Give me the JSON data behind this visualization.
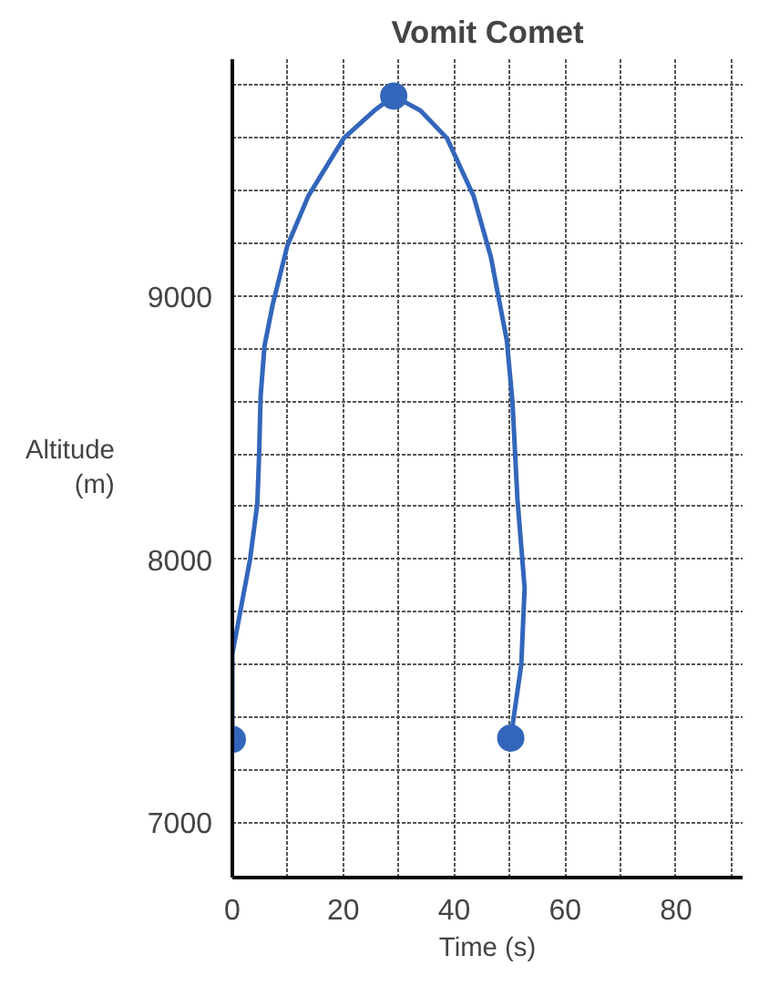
{
  "chart_data": {
    "type": "line",
    "title": "Vomit Comet",
    "xlabel": "Time (s)",
    "ylabel": "Altitude (m)",
    "xlim": [
      0,
      92
    ],
    "ylim": [
      6790,
      9900
    ],
    "xticks": [
      0,
      {
        "value": 10,
        "label": null
      },
      20,
      {
        "value": 30,
        "label": null
      },
      40,
      {
        "value": 50,
        "label": null
      },
      60,
      {
        "value": 70,
        "label": null
      },
      80,
      {
        "value": 90,
        "label": null
      }
    ],
    "yticks": [
      7000,
      {
        "value": 7200,
        "label": null
      },
      {
        "value": 7400,
        "label": null
      },
      {
        "value": 7600,
        "label": null
      },
      {
        "value": 7800,
        "label": null
      },
      8000,
      {
        "value": 8200,
        "label": null
      },
      {
        "value": 8400,
        "label": null
      },
      {
        "value": 8600,
        "label": null
      },
      {
        "value": 8800,
        "label": null
      },
      9000,
      {
        "value": 9200,
        "label": null
      },
      {
        "value": 9400,
        "label": null
      },
      {
        "value": 9600,
        "label": null
      },
      {
        "value": 9800,
        "label": null
      }
    ],
    "grid": true,
    "line_style": "solid",
    "series": [
      {
        "color": "#3366bb",
        "marker": "none",
        "x": [
          0,
          0,
          1.6,
          3.2,
          4.5,
          4.8,
          5.1,
          5.8,
          7.3,
          9.9,
          13.7,
          20.1,
          25.6,
          29.1,
          33.9,
          38.7,
          43.5,
          46.6,
          49.5,
          50.5,
          51.4,
          52.7,
          52.1,
          50.2
        ],
        "values": [
          7315,
          7640,
          7820,
          8000,
          8210,
          8380,
          8620,
          8810,
          8970,
          9190,
          9380,
          9600,
          9705,
          9760,
          9705,
          9600,
          9380,
          9150,
          8830,
          8600,
          8230,
          7890,
          7600,
          7320
        ]
      },
      {
        "type": "scatter",
        "color": "#3366bb",
        "marker": "circle",
        "x": [
          0,
          29.1,
          50.2
        ],
        "values": [
          7315,
          9760,
          7320
        ]
      }
    ]
  }
}
